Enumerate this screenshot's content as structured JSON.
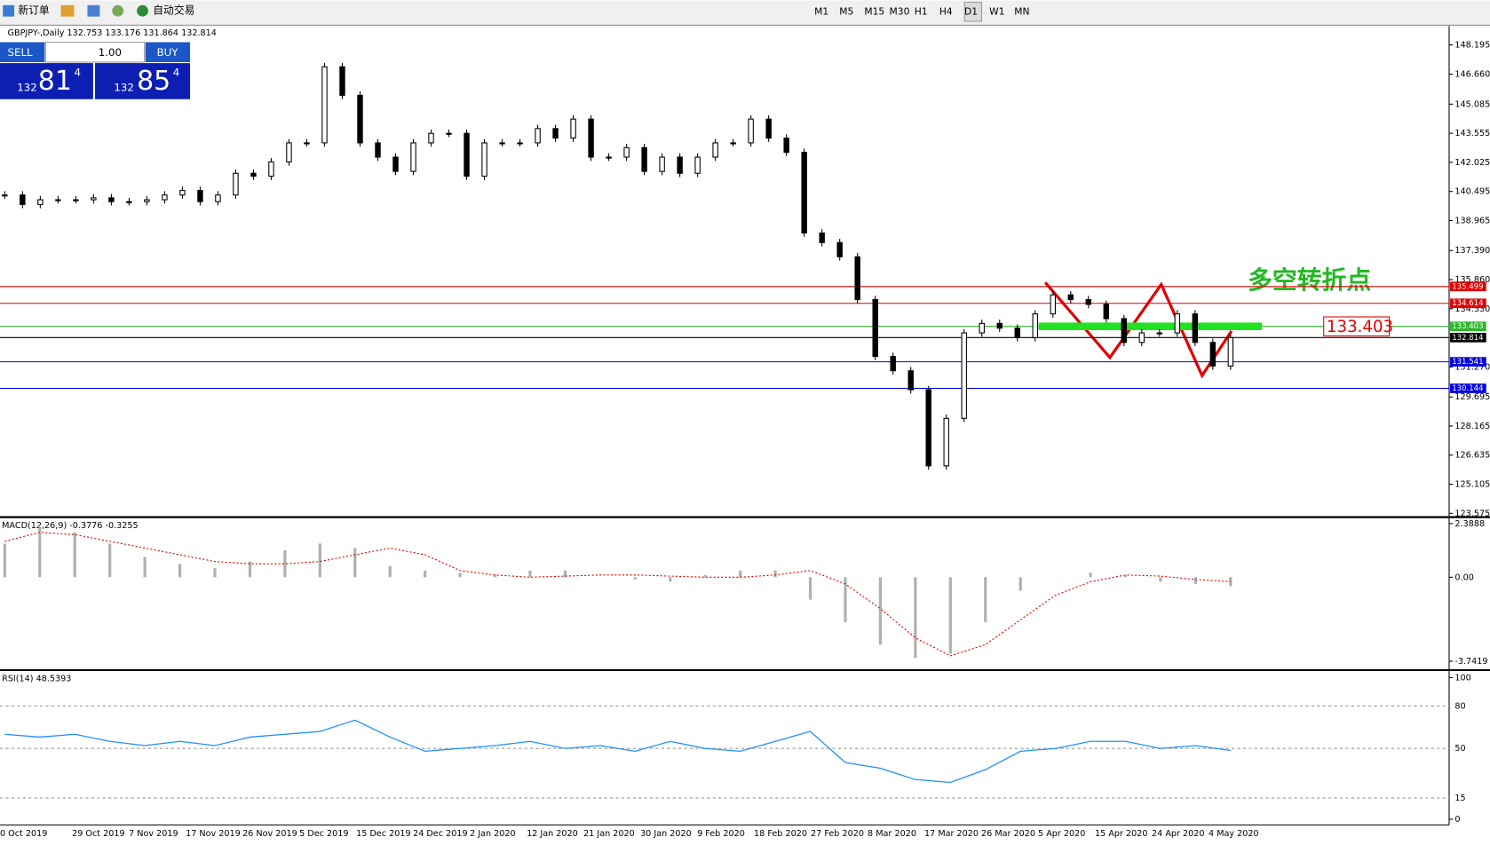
{
  "toolbar": {
    "new_order": "新订单",
    "auto_trading": "自动交易",
    "timeframes": [
      "M1",
      "M5",
      "M15",
      "M30",
      "H1",
      "H4",
      "D1",
      "W1",
      "MN"
    ]
  },
  "trade_panel": {
    "sell": "SELL",
    "lot": "1.00",
    "buy": "BUY",
    "bid_big": "132",
    "bid_main": "81",
    "bid_sup": "4",
    "ask_big": "132",
    "ask_main": "85",
    "ask_sup": "4"
  },
  "chart_data": {
    "type": "candlestick",
    "header": "GBPJPY-,Daily  132.753 133.176 131.864 132.814",
    "ylim": [
      123.425,
      149.19
    ],
    "yticks": [
      148.195,
      {
        "value": 146.66,
        "label": "146.660"
      },
      145.085,
      143.555,
      142.025,
      140.495,
      138.965,
      {
        "value": 137.39,
        "label": "137.390"
      },
      {
        "value": 135.86,
        "label": "135.860"
      },
      {
        "value": 134.33,
        "label": "134.330"
      },
      {
        "value": 131.27,
        "label": "131.270"
      },
      129.695,
      128.165,
      126.635,
      125.105,
      123.575
    ],
    "close": [
      140.31,
      139.81,
      140.06,
      140.06,
      140.06,
      140.16,
      139.96,
      139.96,
      140.06,
      140.31,
      140.55,
      139.96,
      140.31,
      141.45,
      141.3,
      142.05,
      143.05,
      143.05,
      147.05,
      145.55,
      143.05,
      142.3,
      141.55,
      143.05,
      143.55,
      143.55,
      141.3,
      143.05,
      143.05,
      143.05,
      143.8,
      143.3,
      144.3,
      142.3,
      142.3,
      142.8,
      141.55,
      142.3,
      141.45,
      142.3,
      143.05,
      143.05,
      144.3,
      143.3,
      142.55,
      138.31,
      137.81,
      137.06,
      134.81,
      131.82,
      131.07,
      130.07,
      126.07,
      128.57,
      133.06,
      133.56,
      133.31,
      132.81,
      134.06,
      135.06,
      134.81,
      134.56,
      133.81,
      132.56,
      133.06,
      133.06,
      134.06,
      132.56,
      131.32,
      132.81
    ],
    "levels": [
      {
        "value": 135.499,
        "color": "#e00000"
      },
      {
        "value": 134.614,
        "color": "#e00000"
      },
      {
        "value": 133.403,
        "color": "#2fb52f"
      },
      {
        "value": 132.814,
        "color": "#000000"
      },
      {
        "value": 131.541,
        "color": "#0000e0"
      },
      {
        "value": 130.144,
        "color": "#0000e0"
      }
    ],
    "annotation": "多空转折点",
    "xtick_labels": [
      "0 Oct 2019",
      "29 Oct 2019",
      "7 Nov 2019",
      "17 Nov 2019",
      "26 Nov 2019",
      "5 Dec 2019",
      "15 Dec 2019",
      "24 Dec 2019",
      "2 Jan 2020",
      "12 Jan 2020",
      "21 Jan 2020",
      "30 Jan 2020",
      "9 Feb 2020",
      "18 Feb 2020",
      "27 Feb 2020",
      "8 Mar 2020",
      "17 Mar 2020",
      "26 Mar 2020",
      "5 Apr 2020",
      "15 Apr 2020",
      "24 Apr 2020",
      "4 May 2020"
    ],
    "macd": {
      "title": "MACD(12,26,9) -0.3776 -0.3255",
      "ylim": [
        -4.05,
        2.55
      ],
      "yticks": [
        2.3888,
        {
          "value": 0,
          "label": "0.00"
        },
        -3.7419
      ],
      "histogram": [
        1.5,
        2.2,
        2.0,
        1.5,
        0.9,
        0.6,
        0.4,
        0.7,
        1.2,
        1.5,
        1.3,
        0.5,
        0.3,
        0.2,
        0.1,
        0.3,
        0.3,
        0.0,
        -0.1,
        -0.2,
        0.1,
        0.3,
        0.3,
        -1.0,
        -2.0,
        -3.0,
        -3.6,
        -3.4,
        -2.0,
        -0.6,
        0.0,
        0.2,
        0.1,
        -0.2,
        -0.3,
        -0.4
      ],
      "signal": [
        1.6,
        2.0,
        1.9,
        1.6,
        1.3,
        1.0,
        0.7,
        0.6,
        0.6,
        0.7,
        1.0,
        1.3,
        1.0,
        0.3,
        0.1,
        0.0,
        0.05,
        0.1,
        0.1,
        0.05,
        0.0,
        0.0,
        0.1,
        0.3,
        -0.3,
        -1.4,
        -2.7,
        -3.5,
        -3.0,
        -1.9,
        -0.8,
        -0.2,
        0.1,
        0.05,
        -0.1,
        -0.2
      ]
    },
    "rsi": {
      "title": "RSI(14) 48.5393",
      "ylim": [
        -4,
        104
      ],
      "yticks": [
        100,
        80,
        50,
        15,
        0
      ],
      "values": [
        60,
        58,
        60,
        55,
        52,
        55,
        52,
        58,
        60,
        62,
        70,
        58,
        48,
        50,
        52,
        55,
        50,
        52,
        48,
        55,
        50,
        48,
        55,
        62,
        40,
        36,
        28,
        26,
        35,
        48,
        50,
        55,
        55,
        50,
        52,
        48.54
      ]
    }
  }
}
